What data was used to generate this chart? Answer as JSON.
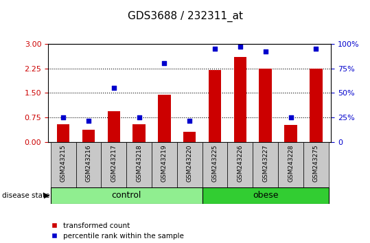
{
  "title": "GDS3688 / 232311_at",
  "samples": [
    "GSM243215",
    "GSM243216",
    "GSM243217",
    "GSM243218",
    "GSM243219",
    "GSM243220",
    "GSM243225",
    "GSM243226",
    "GSM243227",
    "GSM243228",
    "GSM243275"
  ],
  "red_values": [
    0.55,
    0.38,
    0.95,
    0.55,
    1.45,
    0.32,
    2.2,
    2.6,
    2.25,
    0.52,
    2.25
  ],
  "blue_values": [
    25,
    22,
    55,
    25,
    80,
    22,
    95,
    97,
    92,
    25,
    95
  ],
  "control_count": 6,
  "obese_count": 5,
  "bar_color": "#CC0000",
  "dot_color": "#0000CC",
  "y_left_ticks": [
    0,
    0.75,
    1.5,
    2.25,
    3
  ],
  "y_right_ticks": [
    0,
    25,
    50,
    75,
    100
  ],
  "y_left_label_color": "#CC0000",
  "y_right_label_color": "#0000CC",
  "grid_color": "black",
  "legend_red_label": "transformed count",
  "legend_blue_label": "percentile rank within the sample",
  "disease_state_label": "disease state",
  "control_label": "control",
  "obese_label": "obese",
  "control_color": "#90EE90",
  "obese_color": "#32CD32",
  "xlabel_area_color": "#C8C8C8",
  "bar_width": 0.5
}
